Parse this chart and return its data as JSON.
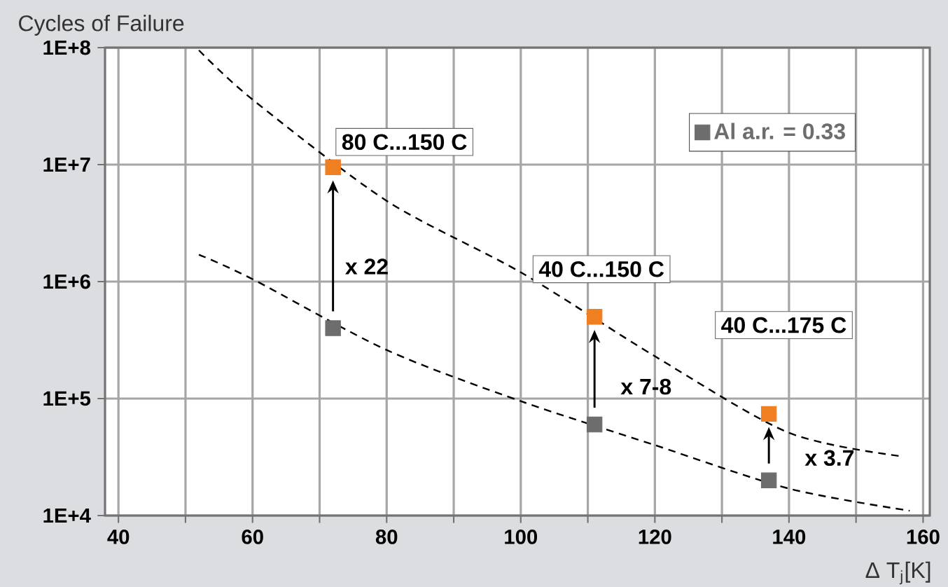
{
  "chart_data": {
    "type": "scatter",
    "ylabel": "Cycles of Failure",
    "xlabel": "Δ T$_{j}$[K]",
    "xlim": [
      38,
      161
    ],
    "ylim": [
      10000,
      100000000
    ],
    "log": "y",
    "grid": true,
    "legend": "top right",
    "marker": "square",
    "xticks": [
      40,
      {
        "value": 50,
        "label": null
      },
      60,
      {
        "value": 70,
        "label": null
      },
      80,
      {
        "value": 90,
        "label": null
      },
      100,
      {
        "value": 110,
        "label": null
      },
      120,
      {
        "value": 130,
        "label": null
      },
      140,
      {
        "value": 150,
        "label": null
      },
      160
    ],
    "yticks": [
      {
        "value": 10000,
        "label": "1E+4"
      },
      {
        "value": 100000,
        "label": "1E+5"
      },
      {
        "value": 1000000,
        "label": "1E+6"
      },
      {
        "value": 10000000,
        "label": "1E+7"
      },
      {
        "value": 100000000,
        "label": "1E+8"
      }
    ],
    "series": [
      {
        "type": "line",
        "color": "#000000",
        "line_style": "dashed",
        "marker": "none",
        "x": [
          52,
          60,
          80,
          100,
          120,
          140,
          157
        ],
        "values": [
          95000000,
          36000000,
          4900000,
          1200000,
          230000,
          51000,
          32000
        ]
      },
      {
        "type": "line",
        "color": "#000000",
        "line_style": "dashed",
        "marker": "none",
        "x": [
          52,
          60,
          80,
          100,
          120,
          140,
          158
        ],
        "values": [
          1700000,
          1050000,
          260000,
          95000,
          40000,
          17000,
          11000
        ]
      },
      {
        "color": "#f07f22",
        "x": [
          72,
          111,
          137
        ],
        "values": [
          9500000,
          500000,
          74000
        ]
      },
      {
        "name": "Al a.r. = 0.33",
        "color": "#6d6d6d",
        "x": [
          72,
          111,
          137
        ],
        "values": [
          400000,
          60000,
          20000
        ]
      }
    ],
    "annotations": [
      {
        "text": "80 C...150 C",
        "x": 72,
        "y": 9500000
      },
      {
        "text": "40 C...150 C",
        "x": 111,
        "y": 500000
      },
      "40 C...175 C",
      {
        "text": "x 22",
        "x": 72,
        "y": 400000
      },
      {
        "text": "x 7-8",
        "x": 111,
        "y": 60000
      },
      {
        "text": "x 3.7",
        "x": 137,
        "y": 20000
      }
    ]
  }
}
